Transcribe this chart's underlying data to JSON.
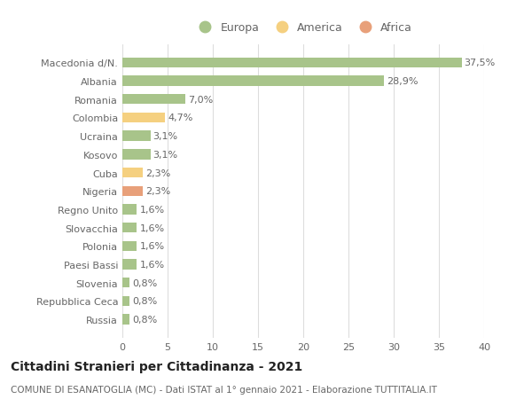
{
  "categories": [
    "Russia",
    "Repubblica Ceca",
    "Slovenia",
    "Paesi Bassi",
    "Polonia",
    "Slovacchia",
    "Regno Unito",
    "Nigeria",
    "Cuba",
    "Kosovo",
    "Ucraina",
    "Colombia",
    "Romania",
    "Albania",
    "Macedonia d/N."
  ],
  "values": [
    0.8,
    0.8,
    0.8,
    1.6,
    1.6,
    1.6,
    1.6,
    2.3,
    2.3,
    3.1,
    3.1,
    4.7,
    7.0,
    28.9,
    37.5
  ],
  "labels": [
    "0,8%",
    "0,8%",
    "0,8%",
    "1,6%",
    "1,6%",
    "1,6%",
    "1,6%",
    "2,3%",
    "2,3%",
    "3,1%",
    "3,1%",
    "4,7%",
    "7,0%",
    "28,9%",
    "37,5%"
  ],
  "colors": [
    "#a8c48a",
    "#a8c48a",
    "#a8c48a",
    "#a8c48a",
    "#a8c48a",
    "#a8c48a",
    "#a8c48a",
    "#e8a07a",
    "#f5d080",
    "#a8c48a",
    "#a8c48a",
    "#f5d080",
    "#a8c48a",
    "#a8c48a",
    "#a8c48a"
  ],
  "legend_labels": [
    "Europa",
    "America",
    "Africa"
  ],
  "legend_colors": [
    "#a8c48a",
    "#f5d080",
    "#e8a07a"
  ],
  "title": "Cittadini Stranieri per Cittadinanza - 2021",
  "subtitle": "COMUNE DI ESANATOGLIA (MC) - Dati ISTAT al 1° gennaio 2021 - Elaborazione TUTTITALIA.IT",
  "xlim": [
    0,
    40
  ],
  "xticks": [
    0,
    5,
    10,
    15,
    20,
    25,
    30,
    35,
    40
  ],
  "background_color": "#ffffff",
  "grid_color": "#dddddd",
  "bar_height": 0.55,
  "title_fontsize": 10,
  "subtitle_fontsize": 7.5,
  "label_fontsize": 8,
  "tick_fontsize": 8,
  "legend_fontsize": 9
}
